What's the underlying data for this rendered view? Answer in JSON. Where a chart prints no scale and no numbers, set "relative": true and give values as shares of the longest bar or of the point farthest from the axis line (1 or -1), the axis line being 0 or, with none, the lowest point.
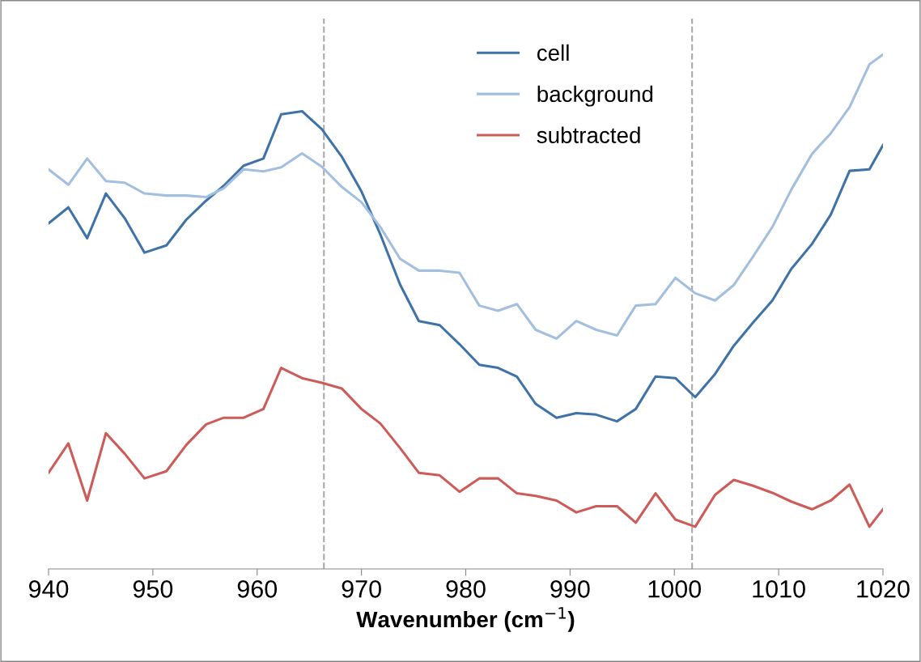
{
  "chart_data": {
    "type": "line",
    "relative": true,
    "xlabel": "Wavenumber (cm$^{−1}$)",
    "x": [
      940,
      941.9,
      943.7,
      945.5,
      947.3,
      949.2,
      951.3,
      953.2,
      955.1,
      956.8,
      958.7,
      960.6,
      962.3,
      964.3,
      966.2,
      968.1,
      970.0,
      971.8,
      973.7,
      975.5,
      977.5,
      979.4,
      981.3,
      983.1,
      984.9,
      986.7,
      988.7,
      990.6,
      992.5,
      994.5,
      996.3,
      998.2,
      1000.1,
      1002.0,
      1003.9,
      1005.7,
      1007.5,
      1009.4,
      1011.2,
      1013.2,
      1015.0,
      1016.8,
      1018.7,
      1020.0
    ],
    "xlim": [
      940,
      1020
    ],
    "xticks": [
      940,
      950,
      960,
      970,
      980,
      990,
      1000,
      1010,
      1020
    ],
    "series": [
      {
        "name": "cell",
        "color": "#3f73a8",
        "values": [
          0.672,
          0.703,
          0.643,
          0.73,
          0.682,
          0.615,
          0.629,
          0.679,
          0.716,
          0.745,
          0.784,
          0.798,
          0.884,
          0.89,
          0.855,
          0.802,
          0.734,
          0.651,
          0.553,
          0.482,
          0.474,
          0.437,
          0.397,
          0.391,
          0.374,
          0.321,
          0.294,
          0.303,
          0.3,
          0.287,
          0.311,
          0.374,
          0.371,
          0.334,
          0.379,
          0.434,
          0.478,
          0.522,
          0.583,
          0.632,
          0.689,
          0.774,
          0.777,
          0.824
        ]
      },
      {
        "name": "background",
        "color": "#a3bfe0",
        "values": [
          0.777,
          0.747,
          0.798,
          0.754,
          0.751,
          0.73,
          0.726,
          0.726,
          0.723,
          0.74,
          0.777,
          0.773,
          0.781,
          0.808,
          0.782,
          0.743,
          0.713,
          0.665,
          0.603,
          0.58,
          0.58,
          0.576,
          0.512,
          0.502,
          0.515,
          0.465,
          0.448,
          0.482,
          0.465,
          0.454,
          0.512,
          0.515,
          0.566,
          0.536,
          0.522,
          0.552,
          0.606,
          0.665,
          0.737,
          0.807,
          0.847,
          0.898,
          0.981,
          1
        ]
      },
      {
        "name": "subtracted",
        "color": "#cd5b57",
        "values": [
          0.187,
          0.244,
          0.133,
          0.264,
          0.224,
          0.176,
          0.19,
          0.241,
          0.281,
          0.294,
          0.294,
          0.311,
          0.391,
          0.371,
          0.362,
          0.351,
          0.311,
          0.283,
          0.235,
          0.187,
          0.182,
          0.15,
          0.176,
          0.176,
          0.147,
          0.142,
          0.133,
          0.11,
          0.122,
          0.122,
          0.09,
          0.147,
          0.096,
          0.082,
          0.144,
          0.173,
          0.162,
          0.148,
          0.131,
          0.116,
          0.133,
          0.164,
          0.082,
          0.116
        ]
      }
    ],
    "ref_lines": [
      {
        "axis": "x",
        "value": 966.4,
        "color": "#aaaaaa",
        "line_style": "dashed"
      },
      {
        "axis": "x",
        "value": 1001.7,
        "color": "#aaaaaa",
        "line_style": "dashed"
      }
    ],
    "legend": "top",
    "grid": false,
    "marker": "none",
    "line_style": "solid"
  }
}
